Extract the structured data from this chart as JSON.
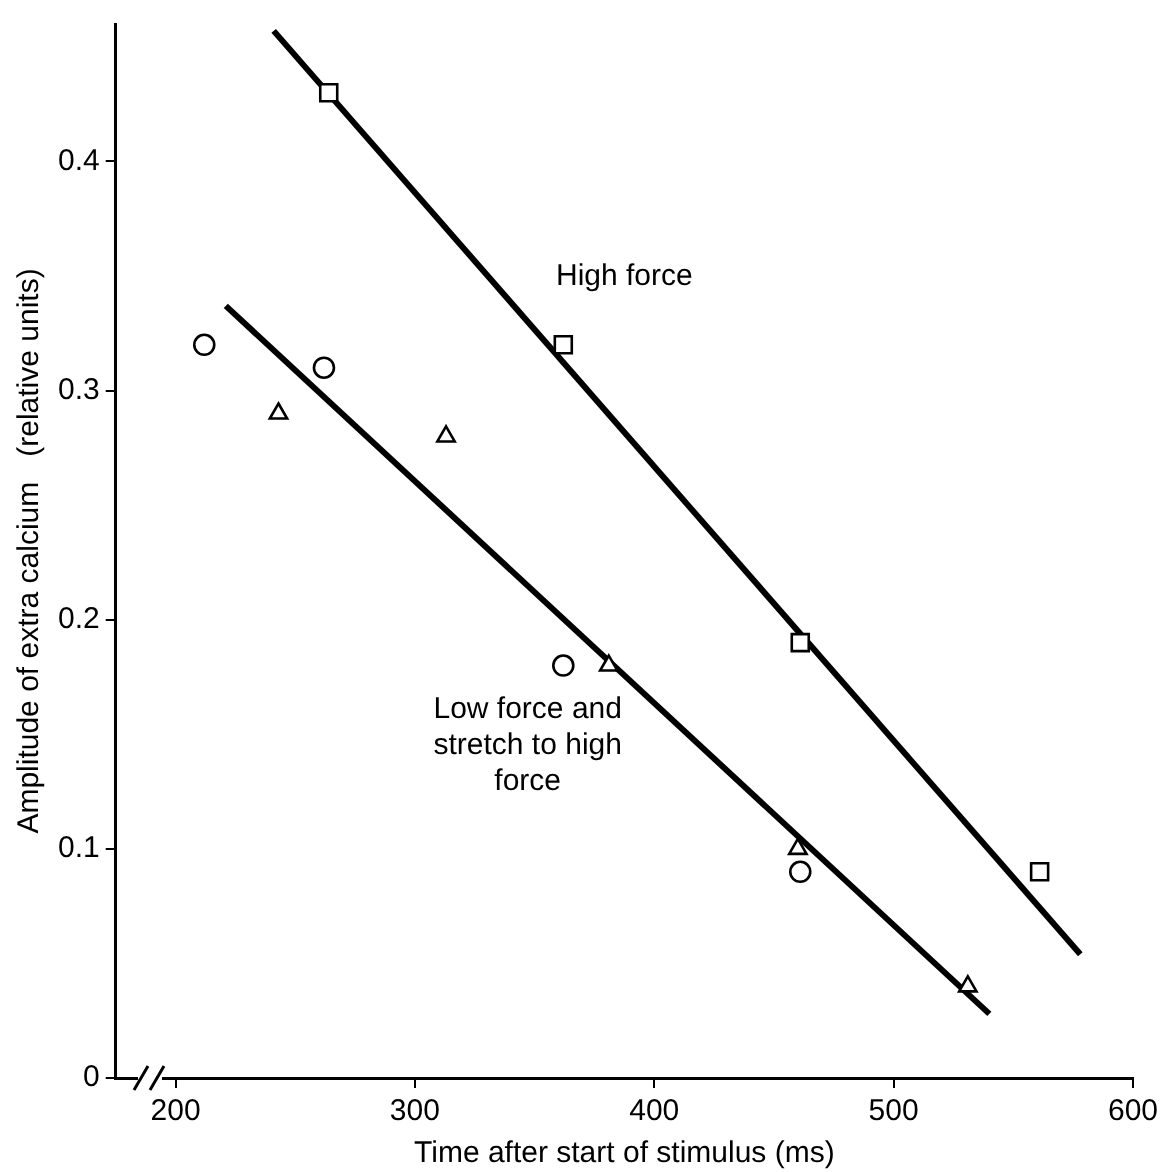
{
  "chart_data": {
    "type": "scatter",
    "xlabel": "Time after start of stimulus (ms)",
    "ylabel": "Amplitude of extra calcium   (relative units)",
    "xlim": [
      175,
      600
    ],
    "xticks": [
      200,
      300,
      400,
      500,
      600
    ],
    "ylim": [
      0,
      0.46
    ],
    "yticks": [
      0,
      0.1,
      0.2,
      0.3,
      0.4
    ],
    "grid": false,
    "legend": false,
    "series": [
      {
        "type": "scatter",
        "marker": "square",
        "color": "#000000",
        "x": [
          264,
          362,
          461,
          561
        ],
        "values": [
          0.43,
          0.32,
          0.19,
          0.09
        ]
      },
      {
        "type": "scatter",
        "marker": "circle",
        "color": "#000000",
        "x": [
          212,
          262,
          362,
          461
        ],
        "values": [
          0.32,
          0.31,
          0.18,
          0.09
        ]
      },
      {
        "type": "scatter",
        "marker": "triangle",
        "color": "#000000",
        "x": [
          243,
          313,
          381,
          460,
          531
        ],
        "values": [
          0.29,
          0.28,
          0.18,
          0.1,
          0.04
        ]
      },
      {
        "type": "line",
        "marker": "none",
        "color": "#000000",
        "x": [
          241,
          578
        ],
        "values": [
          0.457,
          0.054
        ]
      },
      {
        "type": "line",
        "marker": "none",
        "color": "#000000",
        "x": [
          221,
          540
        ],
        "values": [
          0.337,
          0.028
        ]
      }
    ],
    "annotations": [
      "High force",
      "Low force and stretch to high force"
    ]
  }
}
